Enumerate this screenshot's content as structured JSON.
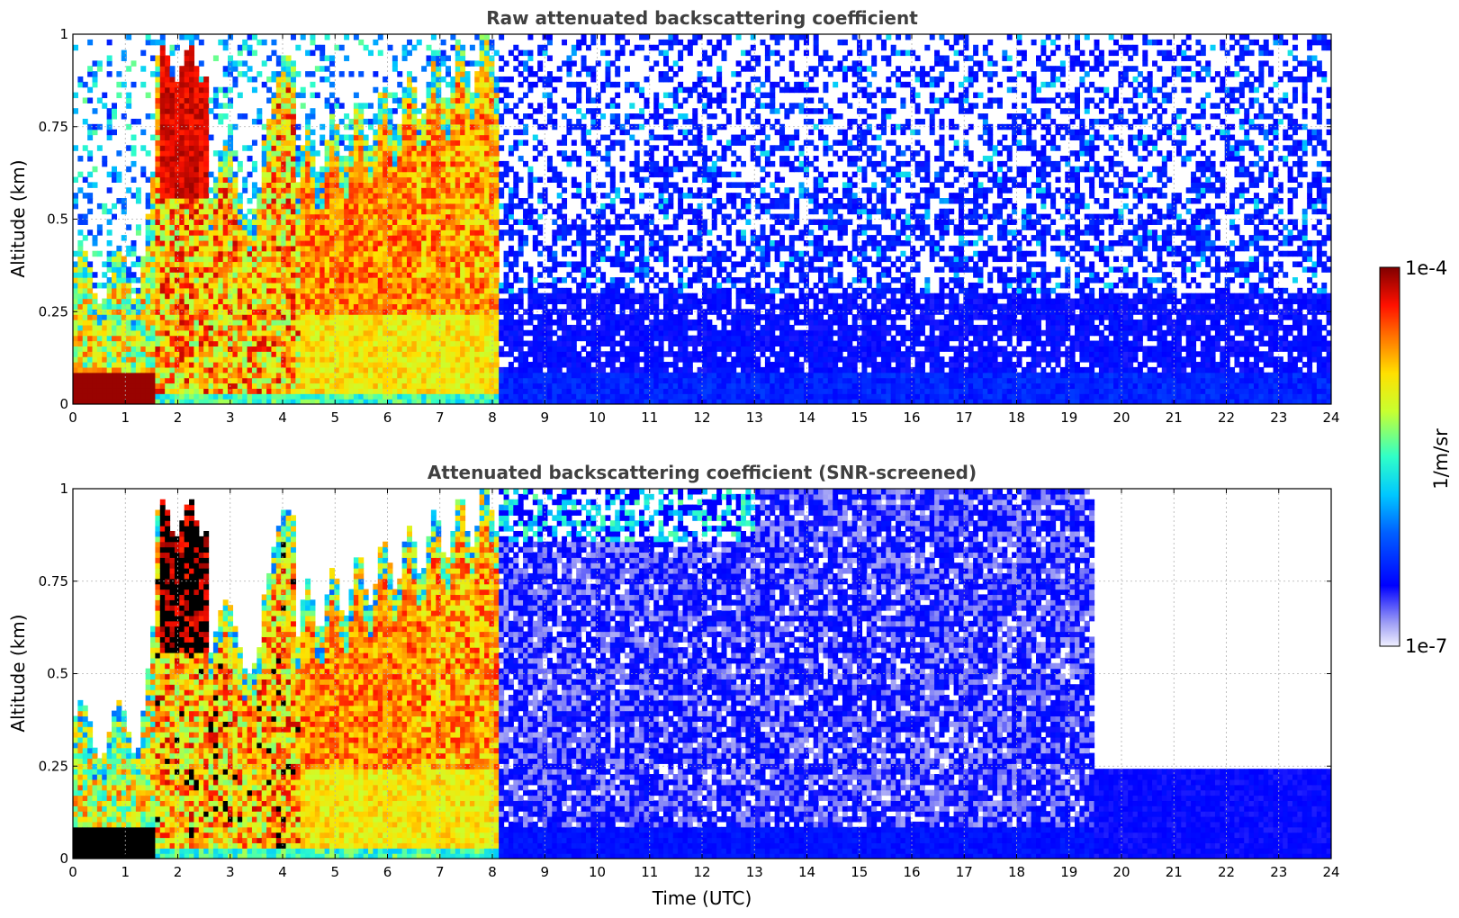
{
  "chart_data": [
    {
      "type": "heatmap",
      "title": "Raw attenuated backscattering coefficient",
      "xlabel": "",
      "ylabel": "Altitude (km)",
      "xlim": [
        0,
        24
      ],
      "ylim": [
        0,
        1
      ],
      "x_ticks": [
        "0",
        "1",
        "2",
        "3",
        "4",
        "5",
        "6",
        "7",
        "8",
        "9",
        "10",
        "11",
        "12",
        "13",
        "14",
        "15",
        "16",
        "17",
        "18",
        "19",
        "20",
        "21",
        "22",
        "23",
        "24"
      ],
      "y_ticks": [
        "0",
        "0.25",
        "0.5",
        "0.75",
        "1"
      ],
      "grid": true,
      "regions": [
        {
          "x": [
            0,
            1.6
          ],
          "y": [
            0,
            0.08
          ],
          "value_level": "very high (~1e-4)"
        },
        {
          "x": [
            0,
            1.6
          ],
          "y": [
            0.08,
            0.38
          ],
          "value_level": "mixed high"
        },
        {
          "x": [
            1.7,
            2.6
          ],
          "y": [
            0.55,
            0.87
          ],
          "value_level": "very high"
        },
        {
          "x": [
            2.5,
            8.1
          ],
          "y": [
            0.03,
            0.75
          ],
          "value_level": "high (orange/red)"
        },
        {
          "x": [
            8.1,
            24
          ],
          "y": [
            0,
            0.3
          ],
          "value_level": "low (blue)"
        },
        {
          "x": [
            8.1,
            24
          ],
          "y": [
            0.3,
            1
          ],
          "value_level": "noise"
        }
      ]
    },
    {
      "type": "heatmap",
      "title": "Attenuated backscattering coefficient (SNR-screened)",
      "xlabel": "Time (UTC)",
      "ylabel": "Altitude (km)",
      "xlim": [
        0,
        24
      ],
      "ylim": [
        0,
        1
      ],
      "x_ticks": [
        "0",
        "1",
        "2",
        "3",
        "4",
        "5",
        "6",
        "7",
        "8",
        "9",
        "10",
        "11",
        "12",
        "13",
        "14",
        "15",
        "16",
        "17",
        "18",
        "19",
        "20",
        "21",
        "22",
        "23",
        "24"
      ],
      "y_ticks": [
        "0",
        "0.25",
        "0.5",
        "0.75",
        "1"
      ],
      "grid": true,
      "regions": [
        {
          "x": [
            0,
            1.6
          ],
          "y": [
            0,
            0.08
          ],
          "value_level": "saturated (black)"
        },
        {
          "x": [
            1.7,
            2.6
          ],
          "y": [
            0.55,
            0.87
          ],
          "value_level": "saturated (black)"
        },
        {
          "x": [
            2.5,
            8.1
          ],
          "y": [
            0.03,
            0.75
          ],
          "value_level": "high"
        },
        {
          "x": [
            8.1,
            19.5
          ],
          "y": [
            0,
            1
          ],
          "value_level": "low (blue)"
        },
        {
          "x": [
            19.5,
            24
          ],
          "y": [
            0,
            0.25
          ],
          "value_level": "low (blue)"
        }
      ]
    }
  ],
  "colorbar": {
    "max_label": "1e-4",
    "min_label": "1e-7",
    "unit_label": "1/m/sr",
    "colormap": "jet"
  }
}
